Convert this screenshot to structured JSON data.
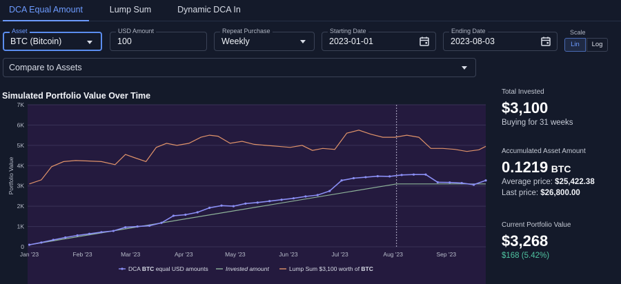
{
  "tabs": [
    {
      "label": "DCA Equal Amount",
      "active": true
    },
    {
      "label": "Lump Sum",
      "active": false
    },
    {
      "label": "Dynamic DCA In",
      "active": false
    }
  ],
  "form": {
    "asset": {
      "label": "Asset",
      "value": "BTC (Bitcoin)"
    },
    "amount": {
      "label": "USD Amount",
      "value": "100"
    },
    "repeat": {
      "label": "Repeat Purchase",
      "value": "Weekly"
    },
    "start": {
      "label": "Starting Date",
      "value": "2023-01-01"
    },
    "end": {
      "label": "Ending Date",
      "value": "2023-08-03"
    },
    "scale": {
      "label": "Scale",
      "options": [
        "Lin",
        "Log"
      ],
      "selected": "Lin"
    },
    "compare": {
      "placeholder": "Compare to Assets"
    }
  },
  "chart_title": "Simulated Portfolio Value Over Time",
  "chart_data": {
    "type": "line",
    "ylabel": "Portfolio Value",
    "ylim": [
      0,
      7000
    ],
    "y_ticks": [
      0,
      1000,
      2000,
      3000,
      4000,
      5000,
      6000,
      7000
    ],
    "y_tick_labels": [
      "0",
      "1K",
      "2K",
      "3K",
      "4K",
      "5K",
      "6K",
      "7K"
    ],
    "x_ticks": [
      "2023-01-01",
      "2023-02-01",
      "2023-03-01",
      "2023-04-01",
      "2023-05-01",
      "2023-06-01",
      "2023-07-01",
      "2023-08-01",
      "2023-09-01"
    ],
    "x_tick_labels": [
      "Jan '23",
      "Feb '23",
      "Mar '23",
      "Apr '23",
      "May '23",
      "Jun '23",
      "Jul '23",
      "Aug '23",
      "Sep '23"
    ],
    "xlim": [
      "2022-12-31",
      "2023-09-24"
    ],
    "marker_date": "2023-08-03",
    "grid": true,
    "legend_placement": "bottom",
    "legend": [
      {
        "prefix": "DCA ",
        "bold": "BTC",
        "suffix": " equal USD amounts"
      },
      {
        "prefix": "Invested amount",
        "bold": "",
        "suffix": ""
      },
      {
        "prefix": "Lump Sum $3,100 worth of ",
        "bold": "BTC",
        "suffix": ""
      }
    ],
    "series": [
      {
        "name": "DCA BTC equal USD amounts",
        "color": "#8b8ff5",
        "style": "markers",
        "x": [
          "2023-01-01",
          "2023-01-08",
          "2023-01-15",
          "2023-01-22",
          "2023-01-29",
          "2023-02-05",
          "2023-02-12",
          "2023-02-19",
          "2023-02-26",
          "2023-03-05",
          "2023-03-12",
          "2023-03-19",
          "2023-03-26",
          "2023-04-02",
          "2023-04-09",
          "2023-04-16",
          "2023-04-23",
          "2023-04-30",
          "2023-05-07",
          "2023-05-14",
          "2023-05-21",
          "2023-05-28",
          "2023-06-04",
          "2023-06-11",
          "2023-06-18",
          "2023-06-25",
          "2023-07-02",
          "2023-07-09",
          "2023-07-16",
          "2023-07-23",
          "2023-07-30",
          "2023-08-06",
          "2023-08-13",
          "2023-08-20",
          "2023-08-27",
          "2023-09-03",
          "2023-09-10",
          "2023-09-17",
          "2023-09-24"
        ],
        "y": [
          100,
          210,
          340,
          460,
          560,
          640,
          720,
          780,
          960,
          1000,
          1040,
          1180,
          1530,
          1580,
          1700,
          1920,
          2030,
          2000,
          2130,
          2180,
          2250,
          2320,
          2390,
          2480,
          2550,
          2750,
          3270,
          3380,
          3430,
          3480,
          3470,
          3540,
          3560,
          3560,
          3180,
          3170,
          3140,
          3060,
          3270
        ]
      },
      {
        "name": "Invested amount",
        "color": "#8fb49a",
        "style": "line",
        "x": [
          "2023-01-01",
          "2023-08-03",
          "2023-09-24"
        ],
        "y": [
          100,
          3100,
          3100
        ]
      },
      {
        "name": "Lump Sum $3,100 worth of BTC",
        "color": "#e0936a",
        "style": "line",
        "x": [
          "2023-01-01",
          "2023-01-08",
          "2023-01-14",
          "2023-01-21",
          "2023-01-28",
          "2023-02-04",
          "2023-02-12",
          "2023-02-20",
          "2023-02-26",
          "2023-03-03",
          "2023-03-10",
          "2023-03-16",
          "2023-03-22",
          "2023-03-28",
          "2023-04-04",
          "2023-04-11",
          "2023-04-16",
          "2023-04-21",
          "2023-04-28",
          "2023-05-05",
          "2023-05-12",
          "2023-05-19",
          "2023-05-26",
          "2023-06-02",
          "2023-06-09",
          "2023-06-15",
          "2023-06-21",
          "2023-06-28",
          "2023-07-05",
          "2023-07-12",
          "2023-07-19",
          "2023-07-26",
          "2023-08-02",
          "2023-08-09",
          "2023-08-16",
          "2023-08-23",
          "2023-08-30",
          "2023-09-06",
          "2023-09-13",
          "2023-09-20",
          "2023-09-24"
        ],
        "y": [
          3100,
          3300,
          3950,
          4200,
          4250,
          4230,
          4200,
          4050,
          4550,
          4400,
          4200,
          4900,
          5100,
          5000,
          5100,
          5400,
          5500,
          5450,
          5100,
          5200,
          5050,
          5000,
          4950,
          4900,
          5000,
          4750,
          4850,
          4800,
          5600,
          5750,
          5550,
          5400,
          5400,
          5500,
          5400,
          4850,
          4850,
          4800,
          4700,
          4780,
          4950
        ]
      }
    ]
  },
  "stats": {
    "total_invested_label": "Total Invested",
    "total_invested": "$3,100",
    "buying_for": "Buying for 31 weeks",
    "accumulated_label": "Accumulated Asset Amount",
    "accumulated_amount": "0.1219",
    "accumulated_unit": "BTC",
    "avg_price_label": "Average price:",
    "avg_price": "$25,422.38",
    "last_price_label": "Last price:",
    "last_price": "$26,800.00",
    "current_label": "Current Portfolio Value",
    "current_value": "$3,268",
    "gain": "$168 (5.42%)"
  },
  "colors": {
    "accent": "#6d9bff",
    "background": "#141a2a",
    "plot_background": "#241a3e",
    "gain": "#4fc3a0"
  }
}
